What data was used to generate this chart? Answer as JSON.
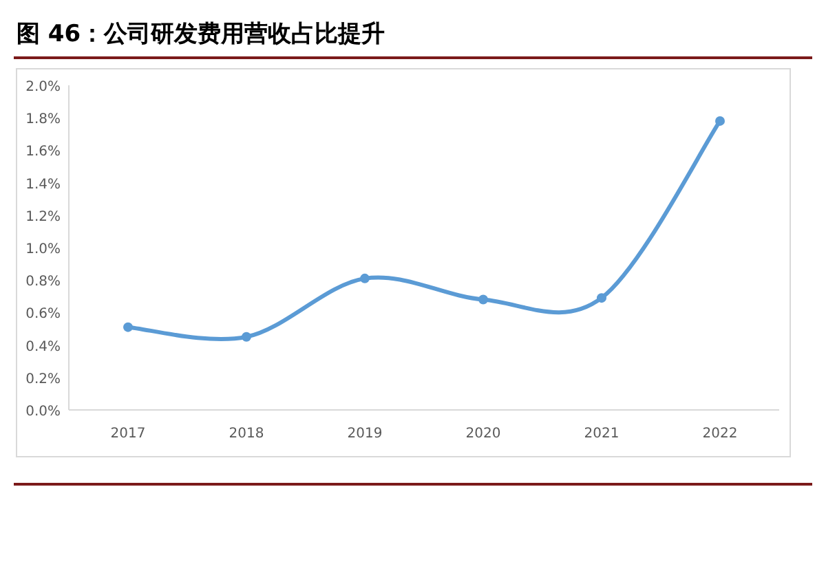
{
  "chart_data": {
    "type": "line",
    "title": "图 46：公司研发费用营收占比提升",
    "categories": [
      "2017",
      "2018",
      "2019",
      "2020",
      "2021",
      "2022"
    ],
    "series": [
      {
        "color": "#5b9bd5",
        "values": [
          0.51,
          0.45,
          0.81,
          0.68,
          0.69,
          1.78
        ]
      }
    ],
    "ylim": [
      0,
      2.0
    ],
    "yticks": [
      {
        "value": 0,
        "label": "0.0%"
      },
      {
        "value": 0.2,
        "label": "0.2%"
      },
      {
        "value": 0.4,
        "label": "0.4%"
      },
      {
        "value": 0.6,
        "label": "0.6%"
      },
      {
        "value": 0.8,
        "label": "0.8%"
      },
      {
        "value": 1.0,
        "label": "1.0%"
      },
      {
        "value": 1.2,
        "label": "1.2%"
      },
      {
        "value": 1.4,
        "label": "1.4%"
      },
      {
        "value": 1.6,
        "label": "1.6%"
      },
      {
        "value": 1.8,
        "label": "1.8%"
      },
      {
        "value": 2.0,
        "label": "2.0%"
      }
    ],
    "marker": "circle"
  }
}
